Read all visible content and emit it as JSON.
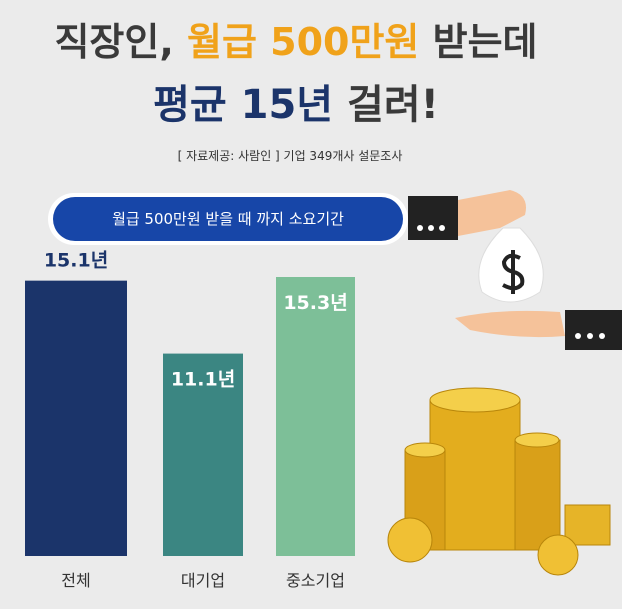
{
  "header": {
    "title_line1": [
      "직장인, ",
      "월급 500만원",
      " 받는데"
    ],
    "title_line2": [
      "평균 15년",
      " 걸려!"
    ],
    "source": "[ 자료제공: 사람인 ] 기업 349개사 설문조사"
  },
  "chart_data": {
    "type": "bar",
    "title": "월급 500만원 받을 때 까지 소요기간",
    "categories": [
      "전체",
      "대기업",
      "중소기업"
    ],
    "values": [
      15.1,
      11.1,
      15.3
    ],
    "value_labels": [
      "15.1년",
      "11.1년",
      "15.3년"
    ],
    "colors": [
      "#1b346a",
      "#3b8682",
      "#7dbf98"
    ]
  }
}
